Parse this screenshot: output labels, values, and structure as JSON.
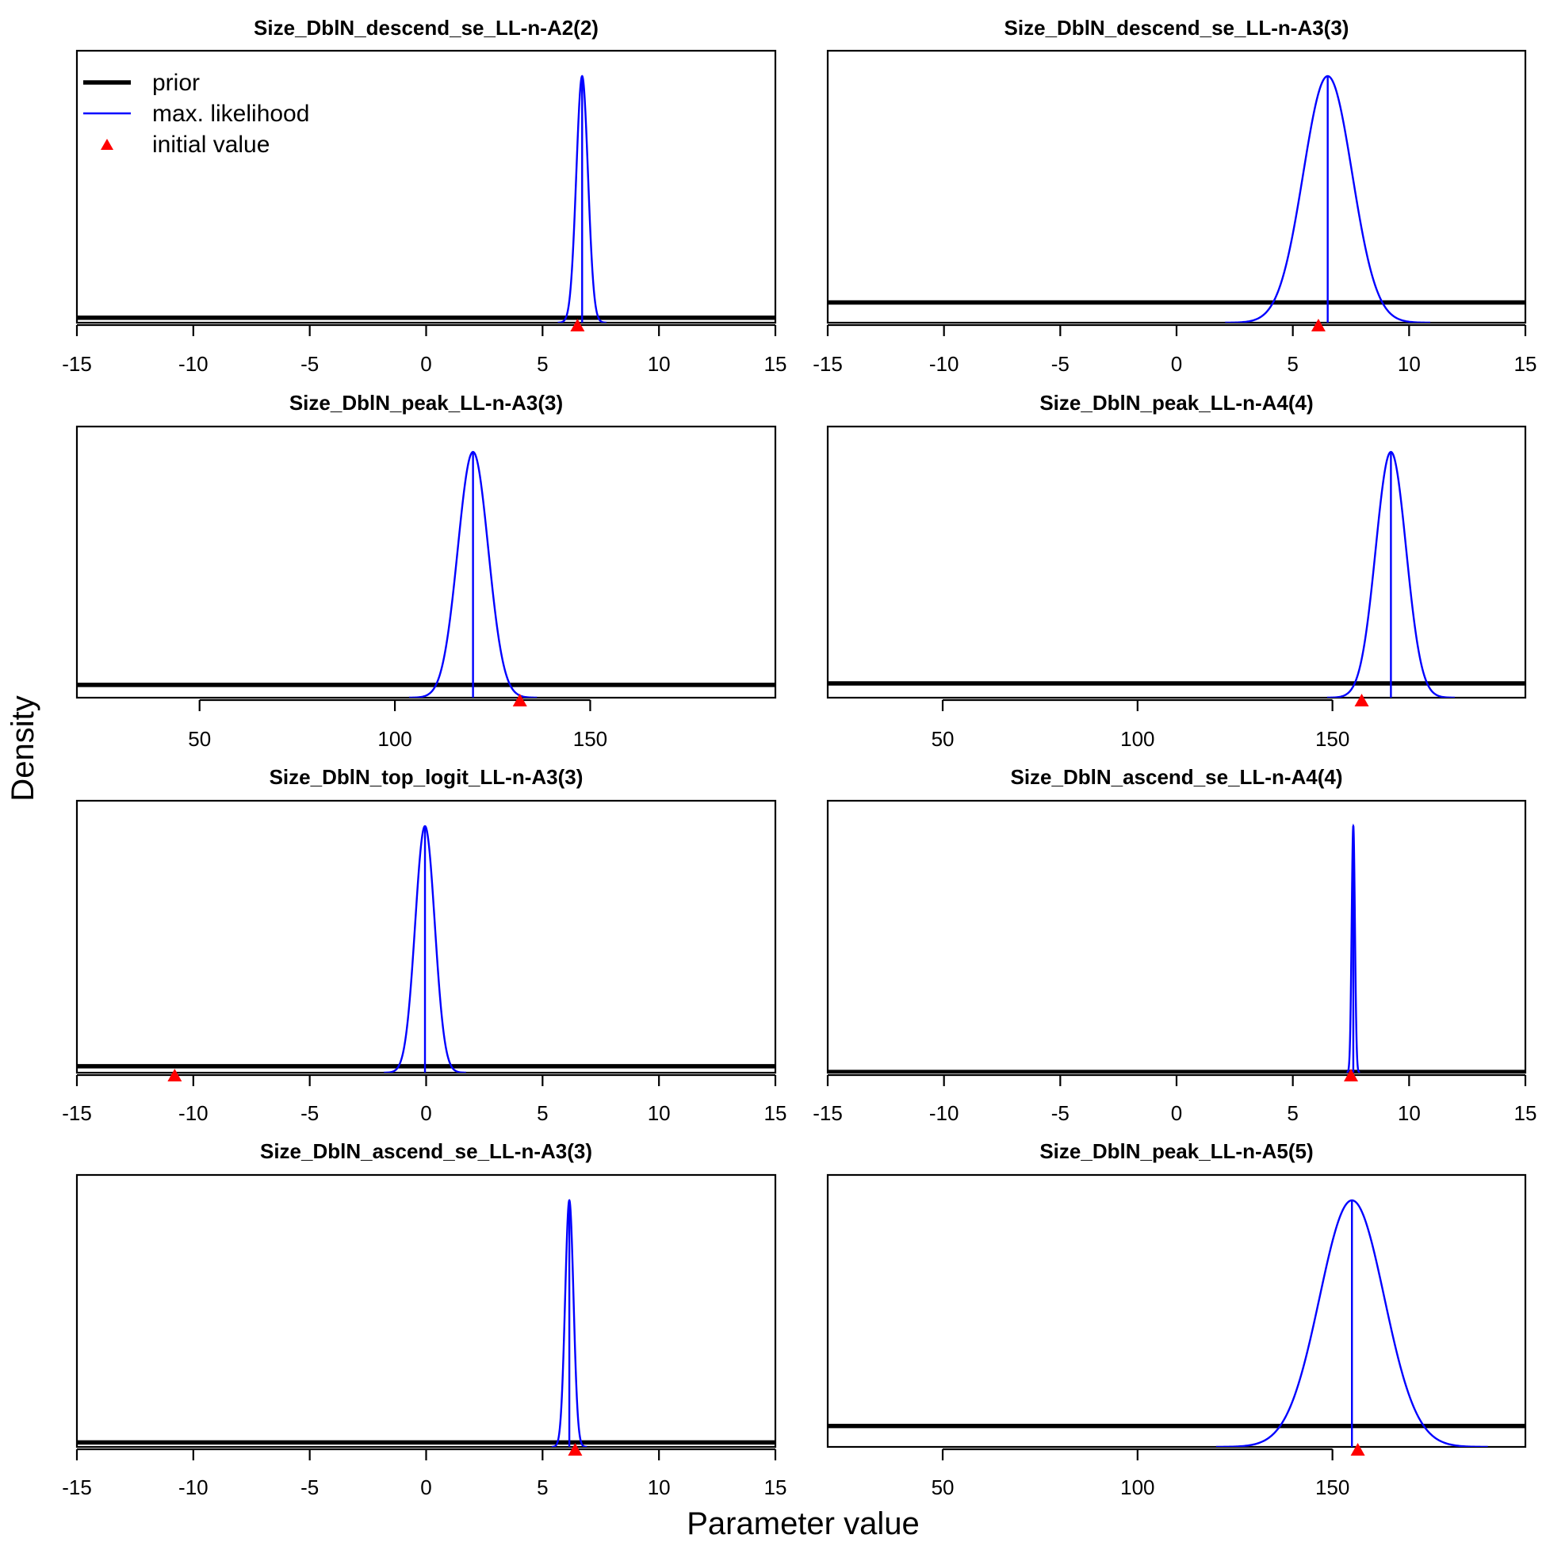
{
  "figure": {
    "xlabel": "Parameter value",
    "ylabel": "Density"
  },
  "legend": {
    "placement": "top-left of first panel",
    "items": [
      {
        "label": "prior",
        "style": "thick-line",
        "color": "#000000"
      },
      {
        "label": "max. likelihood",
        "style": "line",
        "color": "#0000ff"
      },
      {
        "label": "initial value",
        "style": "triangle",
        "color": "#ff0000"
      }
    ]
  },
  "chart_data": [
    {
      "type": "line",
      "title": "Size_DblN_descend_se_LL-n-A2(2)",
      "xlim": [
        -15,
        15
      ],
      "xticks": [
        "-15",
        "-10",
        "-5",
        "0",
        "5",
        "10",
        "15"
      ],
      "mle": 6.7,
      "sd": 0.25,
      "prior_level": 0.02,
      "initial_value": 6.5
    },
    {
      "type": "line",
      "title": "Size_DblN_descend_se_LL-n-A3(3)",
      "xlim": [
        -15,
        15
      ],
      "xticks": [
        "-15",
        "-10",
        "-5",
        "0",
        "5",
        "10",
        "15"
      ],
      "mle": 6.5,
      "sd": 1.05,
      "prior_level": 0.082,
      "initial_value": 6.1
    },
    {
      "type": "line",
      "title": "Size_DblN_peak_LL-n-A3(3)",
      "xlim": [
        18.6,
        197.4
      ],
      "xticks": [
        "50",
        "100",
        "150"
      ],
      "mle": 120,
      "sd": 3.9,
      "prior_level": 0.052,
      "initial_value": 132
    },
    {
      "type": "line",
      "title": "Size_DblN_peak_LL-n-A4(4)",
      "xlim": [
        20.5,
        199.5
      ],
      "xticks": [
        "50",
        "100",
        "150"
      ],
      "mle": 165,
      "sd": 3.9,
      "prior_level": 0.058,
      "initial_value": 157.5
    },
    {
      "type": "line",
      "title": "Size_DblN_top_logit_LL-n-A3(3)",
      "xlim": [
        -15,
        15
      ],
      "xticks": [
        "-15",
        "-10",
        "-5",
        "0",
        "5",
        "10",
        "15"
      ],
      "mle": -0.05,
      "sd": 0.42,
      "prior_level": 0.026,
      "initial_value": -10.8
    },
    {
      "type": "line",
      "title": "Size_DblN_ascend_se_LL-n-A4(4)",
      "xlim": [
        -15,
        15
      ],
      "xticks": [
        "-15",
        "-10",
        "-5",
        "0",
        "5",
        "10",
        "15"
      ],
      "mle": 7.6,
      "sd": 0.07,
      "prior_level": 0.003,
      "initial_value": 7.5
    },
    {
      "type": "line",
      "title": "Size_DblN_ascend_se_LL-n-A3(3)",
      "xlim": [
        -15,
        15
      ],
      "xticks": [
        "-15",
        "-10",
        "-5",
        "0",
        "5",
        "10",
        "15"
      ],
      "mle": 6.15,
      "sd": 0.18,
      "prior_level": 0.018,
      "initial_value": 6.4
    },
    {
      "type": "line",
      "title": "Size_DblN_peak_LL-n-A5(5)",
      "xlim": [
        20.5,
        199.5
      ],
      "xticks": [
        "50",
        "100",
        "150"
      ],
      "mle": 155,
      "sd": 8.3,
      "prior_level": 0.085,
      "initial_value": 156.5
    }
  ]
}
